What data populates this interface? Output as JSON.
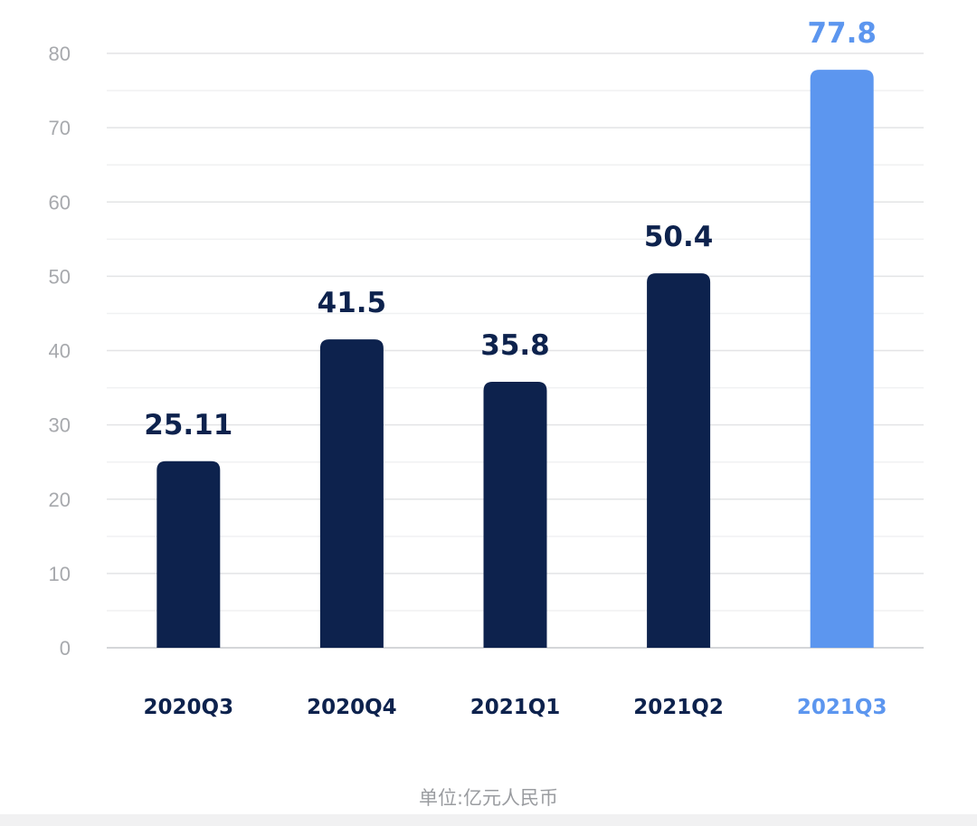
{
  "chart_data": {
    "type": "bar",
    "categories": [
      "2020Q3",
      "2020Q4",
      "2021Q1",
      "2021Q2",
      "2021Q3"
    ],
    "values": [
      25.11,
      41.5,
      35.8,
      50.4,
      77.8
    ],
    "value_labels": [
      "25.11",
      "41.5",
      "35.8",
      "50.4",
      "77.8"
    ],
    "highlight_index": 4,
    "ylim": [
      0,
      80
    ],
    "yticks": [
      0,
      10,
      20,
      30,
      40,
      50,
      60,
      70,
      80
    ],
    "minor_grid_step": 5,
    "grid": true,
    "title": "",
    "xlabel": "",
    "ylabel": ""
  },
  "colors": {
    "bar": "#0d224d",
    "bar_highlight": "#5c96ef",
    "label": "#0d224d",
    "label_highlight": "#5c96ef",
    "tick": "#a7a9ad",
    "grid": "#e3e4e6",
    "baseline": "#d5d6d9"
  },
  "footnote": "单位:亿元人民币"
}
